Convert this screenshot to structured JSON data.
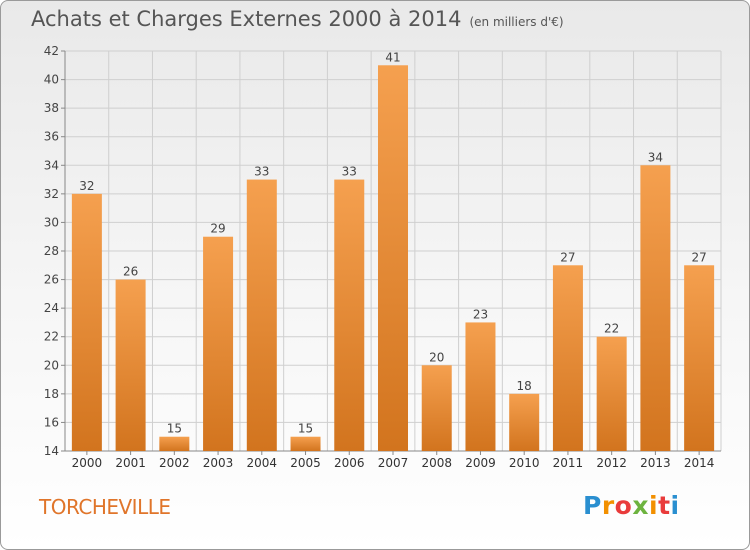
{
  "header": {
    "title": "Achats et Charges Externes 2000 à 2014",
    "subtitle": "(en milliers d'€)"
  },
  "footer": {
    "commune": "TORCHEVILLE",
    "logo_letters": [
      "P",
      "r",
      "o",
      "x",
      "i",
      "t",
      "i"
    ],
    "logo_colors": [
      "#2a8fd0",
      "#f29000",
      "#e93b3b",
      "#6db33f",
      "#f29000",
      "#e93b3b",
      "#2a8fd0"
    ]
  },
  "chart_data": {
    "type": "bar",
    "categories": [
      "2000",
      "2001",
      "2002",
      "2003",
      "2004",
      "2005",
      "2006",
      "2007",
      "2008",
      "2009",
      "2010",
      "2011",
      "2012",
      "2013",
      "2014"
    ],
    "values": [
      32,
      26,
      15,
      29,
      33,
      15,
      33,
      41,
      20,
      23,
      18,
      27,
      22,
      34,
      27
    ],
    "ylim": [
      14,
      42
    ],
    "yticks": [
      14,
      16,
      18,
      20,
      22,
      24,
      26,
      28,
      30,
      32,
      34,
      36,
      38,
      40,
      42
    ],
    "grid": true,
    "bar_color_light": "#f5a04f",
    "bar_color_dark": "#d2741e",
    "grid_color": "#cfcfcf"
  }
}
